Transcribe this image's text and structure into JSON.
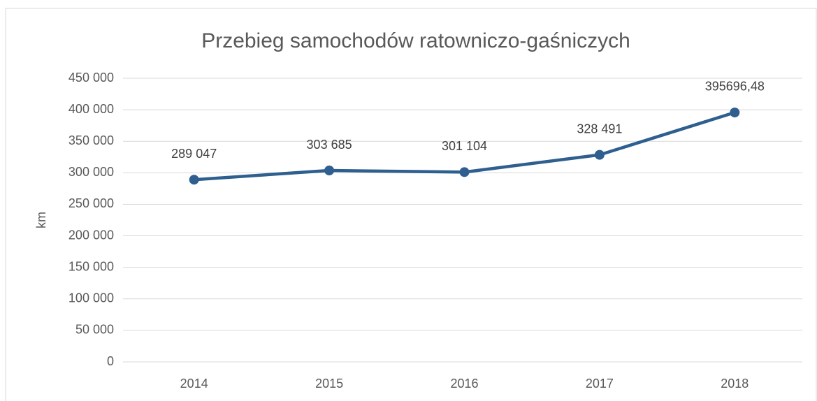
{
  "chart_data": {
    "type": "line",
    "title": "Przebieg samochodów ratowniczo-gaśniczych",
    "y_label": "km",
    "categories": [
      "2014",
      "2015",
      "2016",
      "2017",
      "2018"
    ],
    "series": [
      {
        "name": "km",
        "color": "#2e5f8f",
        "values": [
          289047,
          303685,
          301104,
          328491,
          395696.48
        ],
        "value_labels": [
          "289 047",
          "303 685",
          "301 104",
          "328 491",
          "395696,48"
        ]
      }
    ],
    "ylim": [
      0,
      450000
    ],
    "yticks": [
      0,
      {
        "value": 50000,
        "label": "50 000"
      },
      {
        "value": 100000,
        "label": "100 000"
      },
      {
        "value": 150000,
        "label": "150 000"
      },
      {
        "value": 200000,
        "label": "200 000"
      },
      {
        "value": 250000,
        "label": "250 000"
      },
      {
        "value": 300000,
        "label": "300 000"
      },
      {
        "value": 350000,
        "label": "350 000"
      },
      {
        "value": 400000,
        "label": "400 000"
      },
      {
        "value": 450000,
        "label": "450 000"
      }
    ],
    "grid": true
  }
}
